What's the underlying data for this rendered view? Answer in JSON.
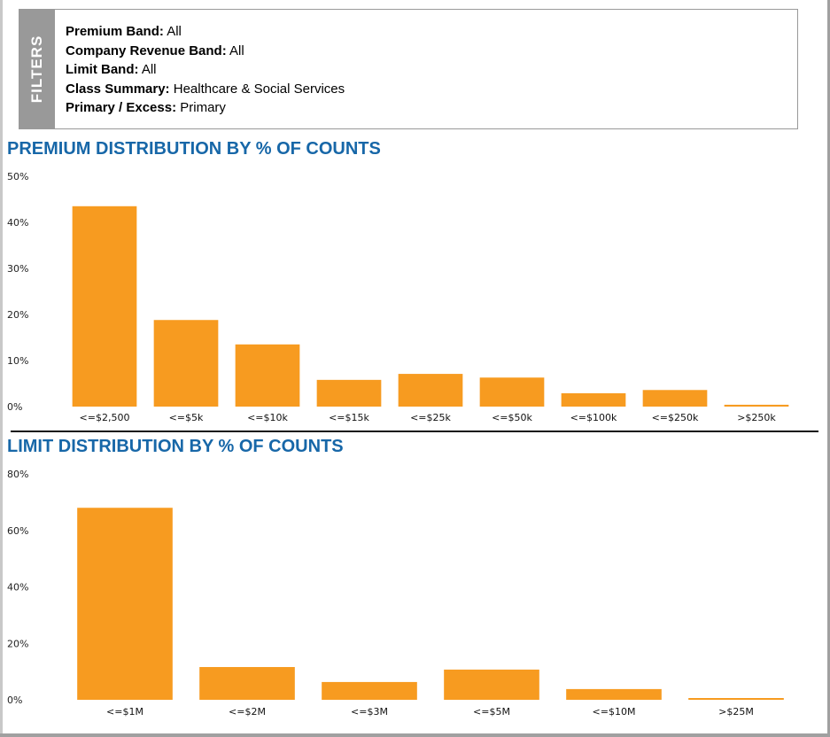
{
  "filters": {
    "tab_label": "FILTERS",
    "items": [
      {
        "label": "Premium Band:",
        "value": "All"
      },
      {
        "label": "Company Revenue Band:",
        "value": "All"
      },
      {
        "label": "Limit Band:",
        "value": "All"
      },
      {
        "label": "Class Summary:",
        "value": "Healthcare & Social Services"
      },
      {
        "label": "Primary / Excess:",
        "value": "Primary"
      }
    ]
  },
  "colors": {
    "bar": "#f79b20",
    "title": "#1767a8"
  },
  "chart_data": [
    {
      "type": "bar",
      "title": "PREMIUM DISTRIBUTION BY % OF COUNTS",
      "xlabel": "",
      "ylabel": "",
      "ylim": [
        0,
        50
      ],
      "yticks": [
        0,
        10,
        20,
        30,
        40,
        50
      ],
      "ytick_labels": [
        "0%",
        "10%",
        "20%",
        "30%",
        "40%",
        "50%"
      ],
      "grid": false,
      "categories": [
        "<=$2,500",
        "<=$5k",
        "<=$10k",
        "<=$15k",
        "<=$25k",
        "<=$50k",
        "<=$100k",
        "<=$250k",
        ">$250k"
      ],
      "values": [
        43.5,
        18.8,
        13.5,
        5.8,
        7.1,
        6.3,
        2.9,
        3.6,
        0.4
      ]
    },
    {
      "type": "bar",
      "title": "LIMIT DISTRIBUTION BY % OF COUNTS",
      "xlabel": "",
      "ylabel": "",
      "ylim": [
        0,
        80
      ],
      "yticks": [
        0,
        20,
        40,
        60,
        80
      ],
      "ytick_labels": [
        "0%",
        "20%",
        "40%",
        "60%",
        "80%"
      ],
      "grid": false,
      "categories": [
        "<=$1M",
        "<=$2M",
        "<=$3M",
        "<=$5M",
        "<=$10M",
        ">$25M"
      ],
      "values": [
        68.0,
        11.6,
        6.3,
        10.7,
        3.8,
        0.6
      ]
    }
  ]
}
